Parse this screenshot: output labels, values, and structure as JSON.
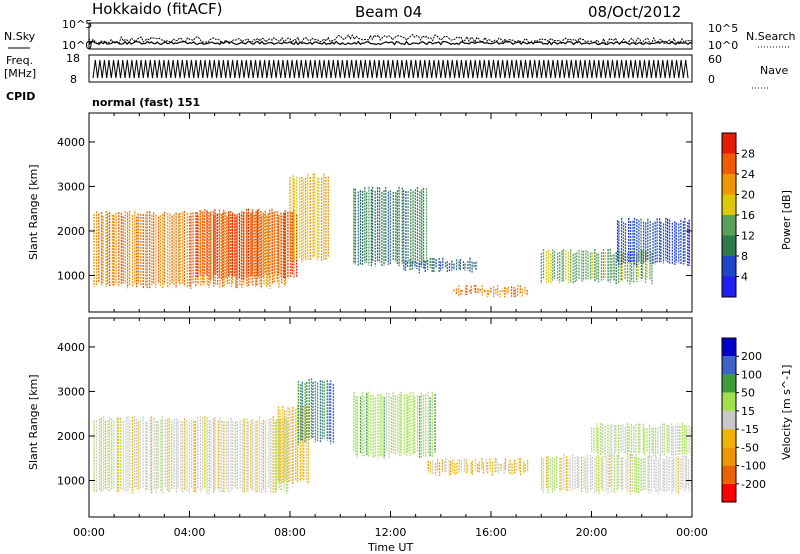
{
  "header": {
    "title": "Hokkaido (fitACF)",
    "beam": "Beam 04",
    "date": "08/Oct/2012"
  },
  "panels": {
    "nsky_label": "N.Sky",
    "nsky_ticks": [
      "10^5",
      "10^0"
    ],
    "nsky_right_ticks": [
      "10^5",
      "10^0"
    ],
    "nsearch_label": "N.Search",
    "freq_label": "Freq.",
    "freq_unit": "[MHz]",
    "freq_ticks": [
      "18",
      "8"
    ],
    "nave_ticks": [
      "60",
      "0"
    ],
    "nave_label": "Nave",
    "cpid_label": "CPID",
    "cpid_text": "normal (fast) 151"
  },
  "colors": {
    "power": [
      "#1e1ef0",
      "#1e46c8",
      "#2e7a4c",
      "#5aa05a",
      "#e0c800",
      "#f09600",
      "#f05a00",
      "#e61e00"
    ],
    "velocity": [
      "#ff0000",
      "#e86400",
      "#f09600",
      "#f0b400",
      "#c8c8c8",
      "#a0e050",
      "#3c9c3c",
      "#3c64c8",
      "#0000c8"
    ],
    "ground_scatter": "#bebebe"
  },
  "chart_data": [
    {
      "type": "heatmap",
      "title": "Power",
      "xlabel": "",
      "ylabel": "Slant Range [km]",
      "y_ticks": [
        "1000",
        "2000",
        "3000",
        "4000"
      ],
      "ylim": [
        180,
        4650
      ],
      "xlim_hours": [
        0,
        24
      ],
      "colorbar_label": "Power [dB]",
      "colorbar_ticks": [
        "4",
        "8",
        "12",
        "16",
        "20",
        "24",
        "28"
      ],
      "colorbar_range": [
        0,
        32
      ],
      "regions": [
        {
          "t0": 0.2,
          "t1": 7.9,
          "r0": 700,
          "r1": 2450,
          "value": 24
        },
        {
          "t0": 4.3,
          "t1": 8.3,
          "r0": 900,
          "r1": 2500,
          "value": 27
        },
        {
          "t0": 8.0,
          "t1": 9.6,
          "r0": 1300,
          "r1": 3300,
          "value": 20
        },
        {
          "t0": 10.5,
          "t1": 13.5,
          "r0": 1200,
          "r1": 3000,
          "value": 10
        },
        {
          "t0": 12.5,
          "t1": 15.5,
          "r0": 1050,
          "r1": 1400,
          "value": 8
        },
        {
          "t0": 14.5,
          "t1": 17.5,
          "r0": 500,
          "r1": 800,
          "value": 24
        },
        {
          "t0": 18.0,
          "t1": 22.5,
          "r0": 800,
          "r1": 1600,
          "value": 14
        },
        {
          "t0": 21.0,
          "t1": 24.0,
          "r0": 1200,
          "r1": 2300,
          "value": 6
        }
      ]
    },
    {
      "type": "heatmap",
      "title": "Velocity",
      "xlabel": "Time UT",
      "ylabel": "Slant Range [km]",
      "x_ticks": [
        "00:00",
        "04:00",
        "08:00",
        "12:00",
        "16:00",
        "20:00",
        "00:00"
      ],
      "y_ticks": [
        "1000",
        "2000",
        "3000",
        "4000"
      ],
      "ylim": [
        180,
        4650
      ],
      "xlim_hours": [
        0,
        24
      ],
      "colorbar_label": "Velocity [m s^-1]",
      "colorbar_ticks": [
        "200",
        "100",
        "50",
        "15",
        "-15",
        "-50",
        "-100",
        "-200"
      ],
      "colorbar_range": [
        -250,
        250
      ],
      "regions": [
        {
          "t0": 0.2,
          "t1": 8.0,
          "r0": 700,
          "r1": 2450,
          "value": 0
        },
        {
          "t0": 7.5,
          "t1": 8.8,
          "r0": 900,
          "r1": 2700,
          "value": -45
        },
        {
          "t0": 8.3,
          "t1": 9.8,
          "r0": 1800,
          "r1": 3300,
          "value": 150
        },
        {
          "t0": 10.5,
          "t1": 13.8,
          "r0": 1500,
          "r1": 3000,
          "value": 60
        },
        {
          "t0": 13.5,
          "t1": 17.5,
          "r0": 1100,
          "r1": 1500,
          "value": -50
        },
        {
          "t0": 18.0,
          "t1": 24.0,
          "r0": 700,
          "r1": 1600,
          "value": 0
        },
        {
          "t0": 20.0,
          "t1": 24.0,
          "r0": 1500,
          "r1": 2300,
          "value": 40
        }
      ]
    }
  ]
}
